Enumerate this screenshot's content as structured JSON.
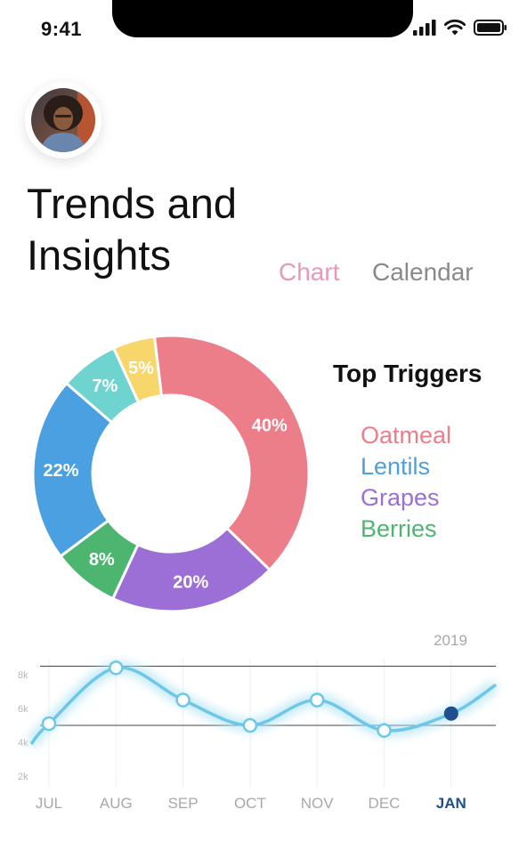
{
  "status_bar": {
    "time": "9:41",
    "icons": [
      "signal-icon",
      "wifi-icon",
      "battery-icon"
    ]
  },
  "header": {
    "avatar": "user-avatar",
    "title_line1": "Trends and",
    "title_line2": "Insights"
  },
  "tabs": [
    {
      "label": "Chart",
      "active": true,
      "color": "#e79ab8"
    },
    {
      "label": "Calendar",
      "active": false,
      "color": "#8a8a8a"
    }
  ],
  "legend": {
    "title": "Top Triggers",
    "items": [
      {
        "label": "Oatmeal",
        "color": "#ec7e8a"
      },
      {
        "label": "Lentils",
        "color": "#4aa0e0"
      },
      {
        "label": "Grapes",
        "color": "#9b6fd6"
      },
      {
        "label": "Berries",
        "color": "#4cb670"
      }
    ]
  },
  "chart_data": [
    {
      "type": "pie",
      "donut": true,
      "slices": [
        {
          "label": "40%",
          "value": 40,
          "color": "#ec7e8a"
        },
        {
          "label": "20%",
          "value": 20,
          "color": "#9b6fd6"
        },
        {
          "label": "8%",
          "value": 8,
          "color": "#4cb670"
        },
        {
          "label": "22%",
          "value": 22,
          "color": "#4aa0e0"
        },
        {
          "label": "7%",
          "value": 7,
          "color": "#6fd3cf"
        },
        {
          "label": "5%",
          "value": 5,
          "color": "#f7d66b"
        }
      ]
    },
    {
      "type": "line",
      "year_label": "2019",
      "categories": [
        "JUL",
        "AUG",
        "SEP",
        "OCT",
        "NOV",
        "DEC",
        "JAN"
      ],
      "values": [
        5.1,
        8.4,
        6.5,
        5.0,
        6.5,
        4.7,
        5.7
      ],
      "highlight_index": 6,
      "yticks": [
        "8k",
        "6k",
        "4k",
        "2k"
      ],
      "ylim": [
        2,
        8
      ],
      "reference_lines": [
        8.5,
        5.0
      ],
      "line_color": "#6cc7e8",
      "highlight_color": "#1f4f8c"
    }
  ]
}
